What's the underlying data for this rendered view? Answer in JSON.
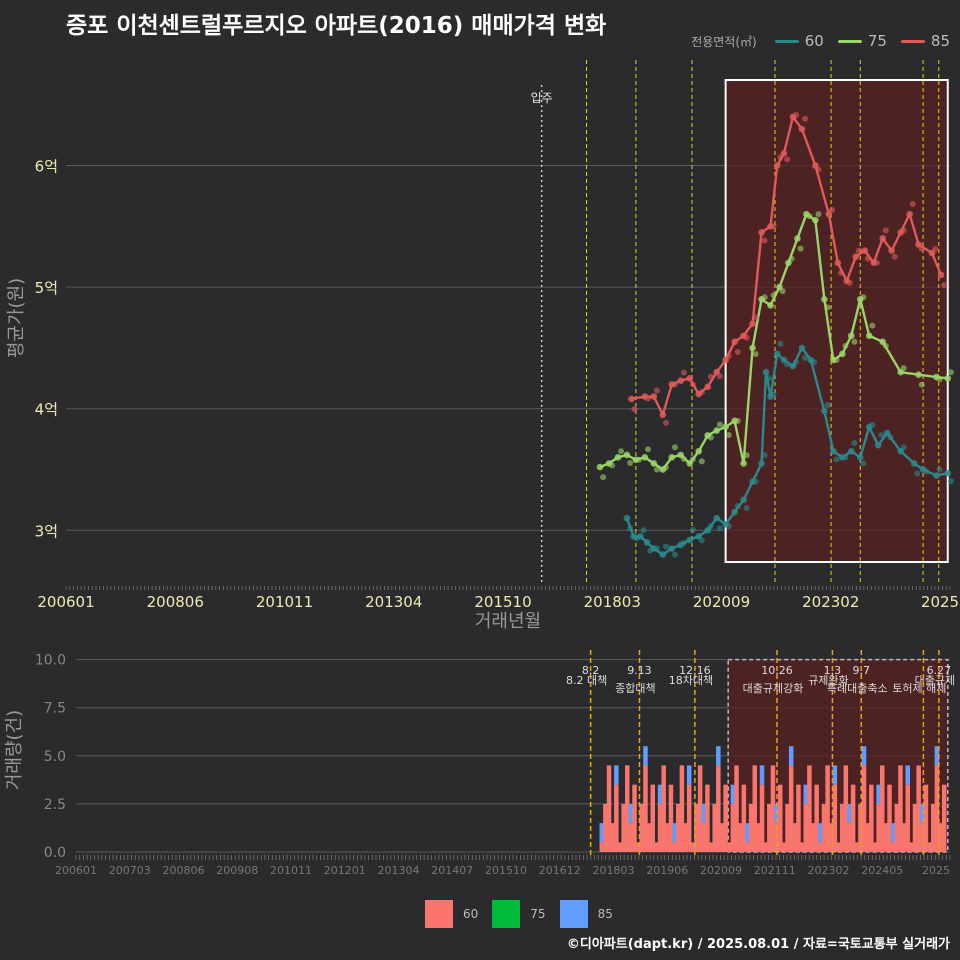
{
  "title": "증포 이천센트럴푸르지오 아파트(2016) 매매가격 변화",
  "legend": {
    "title": "전용면적(㎡)",
    "items": [
      {
        "label": "60",
        "color": "#2a8a8c"
      },
      {
        "label": "75",
        "color": "#9ad46a"
      },
      {
        "label": "85",
        "color": "#e05a5a"
      }
    ]
  },
  "footer": "©디아파트(dapt.kr) / 2025.08.01 / 자료=국토교통부 실거래가",
  "chart_data": [
    {
      "type": "line",
      "title": "증포 이천센트럴푸르지오 아파트(2016) 매매가격 변화",
      "xlabel": "거래년월",
      "ylabel": "평균가(원)",
      "x_tick_labels": [
        "200601",
        "200806",
        "201011",
        "201304",
        "201510",
        "201803",
        "202009",
        "202302",
        "2025"
      ],
      "y_tick_labels": [
        "3억",
        "4억",
        "5억",
        "6억"
      ],
      "y_ticks": [
        3.0,
        4.0,
        5.0,
        6.0
      ],
      "ylim": [
        2.55,
        6.95
      ],
      "xlim": [
        2006.0,
        2025.7
      ],
      "annotation": "입주",
      "move_in_date": 2016.6,
      "policy_lines": [
        2017.6,
        2018.7,
        2019.95,
        2021.8,
        2023.05,
        2023.7,
        2025.1,
        2025.45
      ],
      "highlight_range": [
        2020.7,
        2025.65
      ],
      "series": [
        {
          "name": "60",
          "color": "#2a8a8c",
          "x": [
            2018.5,
            2018.65,
            2018.8,
            2018.95,
            2019.1,
            2019.3,
            2019.5,
            2019.7,
            2019.9,
            2020.1,
            2020.3,
            2020.5,
            2020.7,
            2020.9,
            2021.1,
            2021.3,
            2021.5,
            2021.6,
            2021.7,
            2021.85,
            2022.0,
            2022.2,
            2022.4,
            2022.6,
            2022.9,
            2023.1,
            2023.3,
            2023.5,
            2023.7,
            2023.9,
            2024.1,
            2024.3,
            2024.6,
            2024.9,
            2025.1,
            2025.4,
            2025.65
          ],
          "y": [
            3.1,
            2.95,
            2.95,
            2.9,
            2.85,
            2.8,
            2.85,
            2.88,
            2.92,
            2.95,
            3.0,
            3.1,
            3.05,
            3.15,
            3.25,
            3.4,
            3.55,
            4.3,
            4.1,
            4.45,
            4.4,
            4.35,
            4.5,
            4.4,
            3.98,
            3.65,
            3.6,
            3.65,
            3.6,
            3.85,
            3.7,
            3.8,
            3.65,
            3.55,
            3.5,
            3.45,
            3.47
          ]
        },
        {
          "name": "75",
          "color": "#9ad46a",
          "x": [
            2017.9,
            2018.1,
            2018.3,
            2018.5,
            2018.7,
            2018.9,
            2019.1,
            2019.3,
            2019.5,
            2019.7,
            2019.9,
            2020.1,
            2020.3,
            2020.5,
            2020.7,
            2020.9,
            2021.1,
            2021.3,
            2021.5,
            2021.7,
            2021.9,
            2022.1,
            2022.3,
            2022.5,
            2022.7,
            2022.9,
            2023.1,
            2023.3,
            2023.5,
            2023.7,
            2023.9,
            2024.2,
            2024.6,
            2025.0,
            2025.4,
            2025.65
          ],
          "y": [
            3.52,
            3.55,
            3.6,
            3.62,
            3.58,
            3.6,
            3.55,
            3.5,
            3.6,
            3.62,
            3.55,
            3.65,
            3.78,
            3.82,
            3.85,
            3.9,
            3.55,
            4.5,
            4.9,
            4.85,
            5.0,
            5.2,
            5.4,
            5.6,
            5.55,
            4.9,
            4.4,
            4.45,
            4.6,
            4.9,
            4.6,
            4.55,
            4.3,
            4.28,
            4.26,
            4.25
          ]
        },
        {
          "name": "85",
          "color": "#e05a5a",
          "x": [
            2018.6,
            2018.9,
            2019.1,
            2019.3,
            2019.5,
            2019.7,
            2019.9,
            2020.1,
            2020.3,
            2020.5,
            2020.7,
            2020.9,
            2021.1,
            2021.3,
            2021.5,
            2021.7,
            2021.85,
            2022.0,
            2022.2,
            2022.4,
            2022.7,
            2023.0,
            2023.2,
            2023.4,
            2023.6,
            2023.8,
            2024.0,
            2024.2,
            2024.4,
            2024.6,
            2024.8,
            2025.0,
            2025.3,
            2025.5
          ],
          "y": [
            4.08,
            4.1,
            4.1,
            3.95,
            4.2,
            4.23,
            4.25,
            4.12,
            4.18,
            4.3,
            4.4,
            4.55,
            4.6,
            4.7,
            5.45,
            5.5,
            6.0,
            6.1,
            6.4,
            6.3,
            6.0,
            5.6,
            5.2,
            5.05,
            5.25,
            5.3,
            5.2,
            5.4,
            5.3,
            5.45,
            5.6,
            5.35,
            5.28,
            5.1
          ]
        }
      ]
    },
    {
      "type": "bar",
      "stacked": true,
      "ylabel": "거래량(건)",
      "y_tick_labels": [
        "0.0",
        "2.5",
        "5.0",
        "7.5",
        "10.0"
      ],
      "y_ticks": [
        0,
        2.5,
        5,
        7.5,
        10
      ],
      "ylim": [
        0,
        10.5
      ],
      "x_tick_labels": [
        "200601",
        "200703",
        "200806",
        "200908",
        "201011",
        "201201",
        "201304",
        "201407",
        "201510",
        "201612",
        "201803",
        "201906",
        "202009",
        "202111",
        "202302",
        "202405",
        "2025"
      ],
      "policy_labels": [
        {
          "date": "8.2",
          "text": "8.2 대책",
          "x": 2017.6
        },
        {
          "date": "9.13",
          "text": "종합대책",
          "x": 2018.7
        },
        {
          "date": "12.16",
          "text": "18차대책",
          "x": 2019.95
        },
        {
          "date": "10.26",
          "text": "대출규제강화",
          "x": 2021.8
        },
        {
          "date": "1.3",
          "text": "규제완화",
          "x": 2023.05
        },
        {
          "date": "9.7",
          "text": "특례대출축소",
          "x": 2023.7
        },
        {
          "date": "6.27",
          "text": "대출규제",
          "x": 2025.45
        },
        {
          "date": "",
          "text": "토허제 해제",
          "x": 2025.1
        }
      ],
      "series_names": [
        "60",
        "75",
        "85"
      ],
      "colors": [
        "#f8766d",
        "#00ba38",
        "#619cff"
      ]
    }
  ]
}
